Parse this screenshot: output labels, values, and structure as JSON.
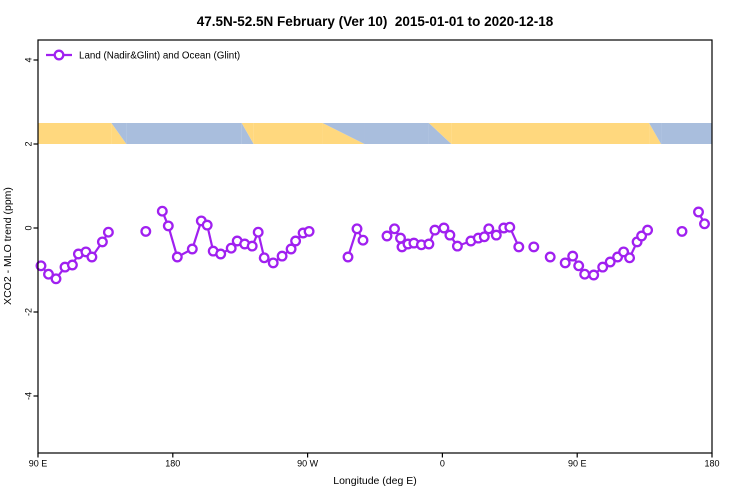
{
  "title": "47.5N-52.5N February (Ver 10)  2015-01-01 to 2020-12-18",
  "legend": {
    "label": "Land (Nadir&Glint) and Ocean (Glint)"
  },
  "colors": {
    "series": "#A020F0",
    "land": "#FFD87E",
    "ocean": "#A9BEDD"
  },
  "chart_data": {
    "type": "line",
    "title": "47.5N-52.5N February (Ver 10)  2015-01-01 to 2020-12-18",
    "xlabel": "Longitude (deg E)",
    "ylabel": "XCO2 - MLO trend (ppm)",
    "xlim": [
      90,
      540
    ],
    "ylim": [
      -5.3,
      4.5
    ],
    "grid": false,
    "legend_position": "top-left-inside",
    "x_ticks": [
      {
        "v": 90,
        "label": "90 E"
      },
      {
        "v": 180,
        "label": "180"
      },
      {
        "v": 270,
        "label": "90 W"
      },
      {
        "v": 360,
        "label": "0"
      },
      {
        "v": 450,
        "label": "90 E"
      },
      {
        "v": 540,
        "label": "180"
      }
    ],
    "y_ticks": [
      {
        "v": 4,
        "label": "4"
      },
      {
        "v": 2,
        "label": "2"
      },
      {
        "v": 0,
        "label": "0"
      },
      {
        "v": -2,
        "label": "-2"
      },
      {
        "v": -4,
        "label": "-4"
      }
    ],
    "surface_band": {
      "y_range": [
        2.0,
        2.5
      ],
      "land_color": "#FFD87E",
      "ocean_color": "#A9BEDD",
      "segments": [
        {
          "from": 90,
          "to": 139,
          "surface": "land"
        },
        {
          "from": 139,
          "to": 149,
          "surface": "mix"
        },
        {
          "from": 149,
          "to": 226,
          "surface": "ocean"
        },
        {
          "from": 226,
          "to": 234,
          "surface": "mix"
        },
        {
          "from": 234,
          "to": 280,
          "surface": "land"
        },
        {
          "from": 280,
          "to": 308,
          "surface": "mix"
        },
        {
          "from": 308,
          "to": 351,
          "surface": "ocean"
        },
        {
          "from": 351,
          "to": 366,
          "surface": "mix"
        },
        {
          "from": 366,
          "to": 498,
          "surface": "land"
        },
        {
          "from": 498,
          "to": 506,
          "surface": "mix"
        },
        {
          "from": 506,
          "to": 540,
          "surface": "ocean"
        }
      ]
    },
    "series": [
      {
        "name": "Land (Nadir&Glint) and Ocean (Glint)",
        "color": "#A020F0",
        "marker": "open-circle",
        "segments": [
          [
            [
              92,
              -0.9
            ],
            [
              97,
              -1.1
            ],
            [
              102,
              -1.21
            ],
            [
              108,
              -0.93
            ],
            [
              113,
              -0.88
            ],
            [
              117,
              -0.62
            ],
            [
              122,
              -0.57
            ],
            [
              126,
              -0.69
            ],
            [
              133,
              -0.33
            ],
            [
              137,
              -0.1
            ]
          ],
          [
            [
              162,
              -0.08
            ]
          ],
          [
            [
              173,
              0.4
            ],
            [
              177,
              0.05
            ],
            [
              183,
              -0.69
            ],
            [
              193,
              -0.5
            ],
            [
              199,
              0.17
            ],
            [
              203,
              0.07
            ],
            [
              207,
              -0.55
            ],
            [
              212,
              -0.62
            ],
            [
              219,
              -0.48
            ],
            [
              223,
              -0.31
            ],
            [
              228,
              -0.38
            ],
            [
              233,
              -0.43
            ],
            [
              237,
              -0.1
            ],
            [
              241,
              -0.71
            ],
            [
              247,
              -0.83
            ],
            [
              253,
              -0.67
            ],
            [
              259,
              -0.5
            ],
            [
              262,
              -0.31
            ],
            [
              267,
              -0.12
            ],
            [
              271,
              -0.08
            ]
          ],
          [
            [
              297,
              -0.69
            ],
            [
              303,
              -0.02
            ],
            [
              307,
              -0.29
            ]
          ],
          [
            [
              323,
              -0.19
            ],
            [
              328,
              -0.02
            ],
            [
              332,
              -0.24
            ],
            [
              333,
              -0.45
            ],
            [
              337,
              -0.38
            ],
            [
              341,
              -0.36
            ],
            [
              346,
              -0.4
            ],
            [
              351,
              -0.38
            ],
            [
              355,
              -0.05
            ],
            [
              361,
              0
            ],
            [
              365,
              -0.17
            ],
            [
              370,
              -0.43
            ],
            [
              379,
              -0.31
            ],
            [
              384,
              -0.24
            ],
            [
              388,
              -0.21
            ],
            [
              391,
              -0.02
            ],
            [
              396,
              -0.17
            ],
            [
              401,
              0
            ],
            [
              405,
              0.02
            ],
            [
              411,
              -0.45
            ]
          ],
          [
            [
              421,
              -0.45
            ]
          ],
          [
            [
              432,
              -0.69
            ]
          ],
          [
            [
              442,
              -0.83
            ],
            [
              447,
              -0.67
            ],
            [
              451,
              -0.9
            ],
            [
              455,
              -1.1
            ],
            [
              461,
              -1.12
            ],
            [
              467,
              -0.93
            ],
            [
              472,
              -0.81
            ],
            [
              477,
              -0.69
            ],
            [
              481,
              -0.57
            ],
            [
              485,
              -0.71
            ],
            [
              490,
              -0.33
            ],
            [
              493,
              -0.19
            ],
            [
              497,
              -0.05
            ]
          ],
          [
            [
              520,
              -0.08
            ]
          ],
          [
            [
              531,
              0.38
            ],
            [
              535,
              0.1
            ]
          ]
        ]
      }
    ]
  }
}
